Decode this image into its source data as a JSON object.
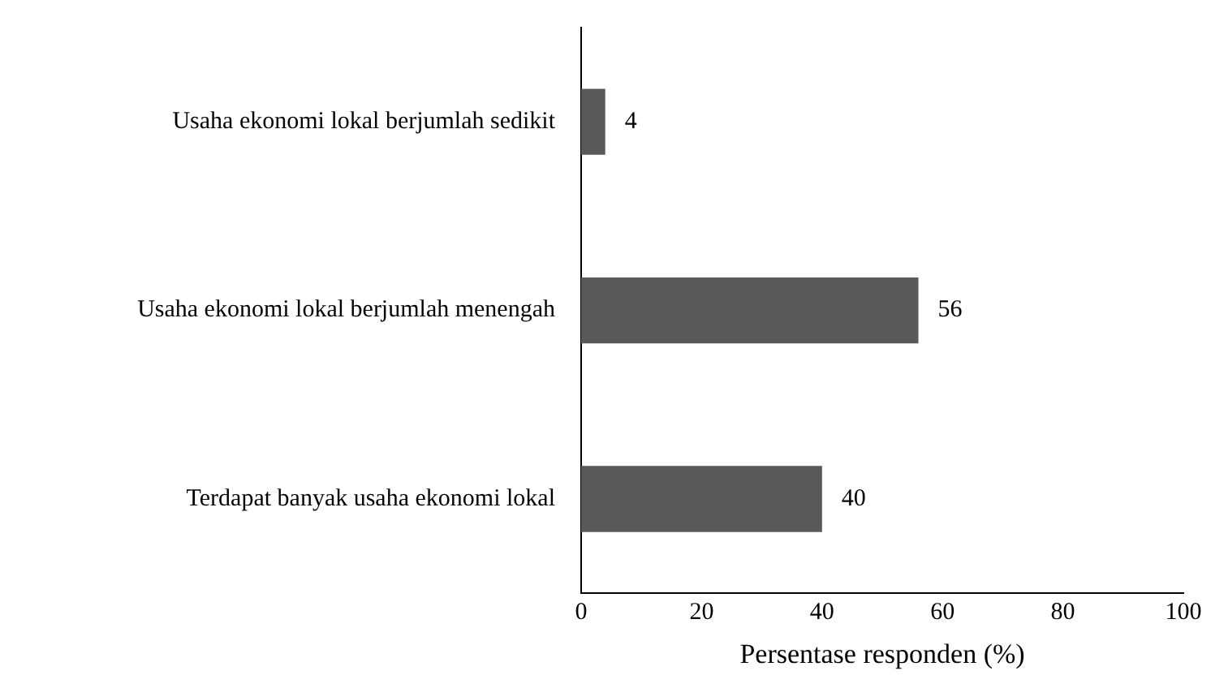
{
  "chart_data": {
    "type": "bar",
    "orientation": "horizontal",
    "categories": [
      "Usaha ekonomi lokal berjumlah sedikit",
      "Usaha ekonomi lokal berjumlah menengah",
      "Terdapat banyak usaha ekonomi lokal"
    ],
    "values": [
      4,
      56,
      40
    ],
    "color": "#595959",
    "xlabel": "Persentase responden (%)",
    "xlim": [
      0,
      100
    ],
    "xticks": [
      0,
      20,
      40,
      60,
      80,
      100
    ],
    "grid": false,
    "legend": false,
    "data_labels": true
  }
}
